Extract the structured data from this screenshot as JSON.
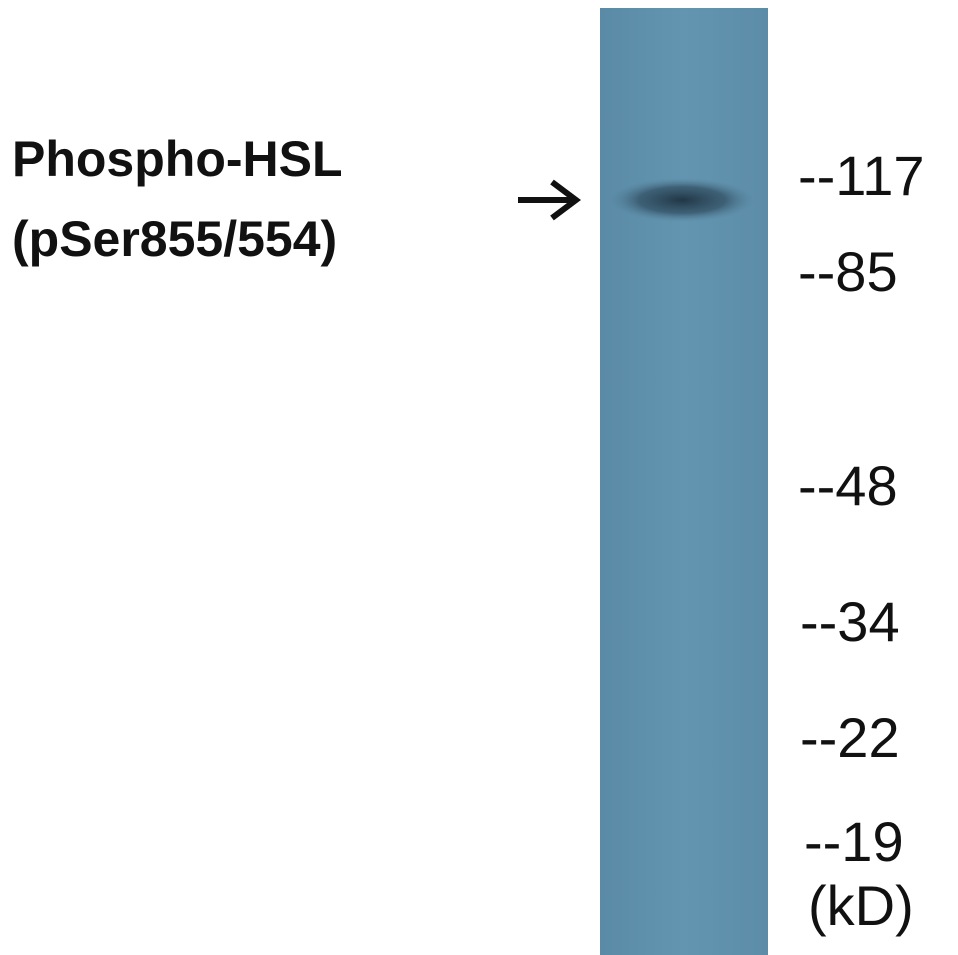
{
  "figure": {
    "title": [
      "Phospho-HSL",
      "(pSer855/554)"
    ],
    "markers": [
      "--117",
      "--85",
      "--48",
      "--34",
      "--22",
      "--19"
    ],
    "unit": "(kD)"
  }
}
